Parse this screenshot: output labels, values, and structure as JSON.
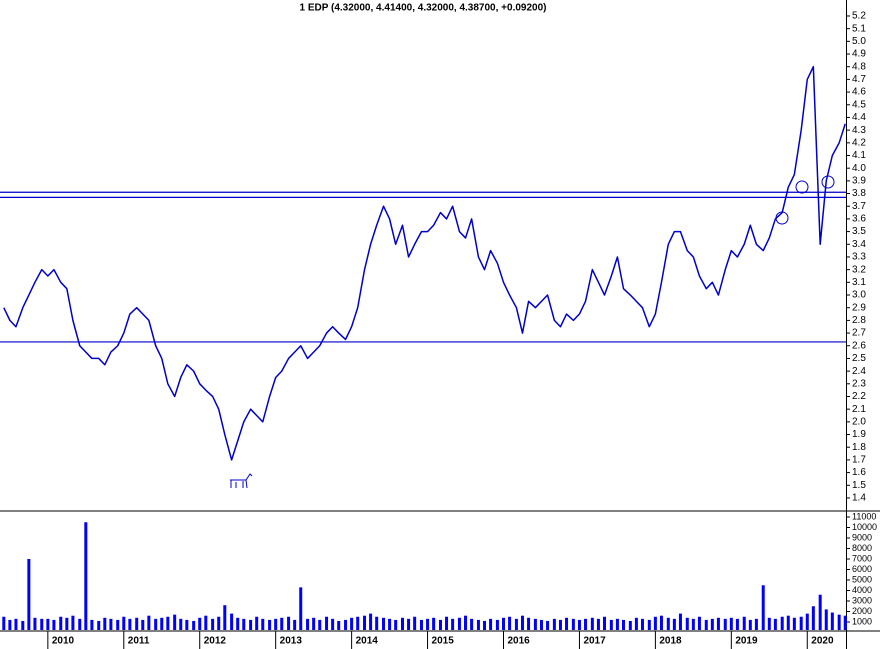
{
  "chart_data": [
    {
      "type": "line",
      "title": "1 EDP (4.32000, 4.41400, 4.32000, 4.38700, +0.09200)",
      "xlim": [
        2009.37,
        2020.51
      ],
      "ylim": [
        1.305,
        5.326
      ],
      "yticks": [
        1.4,
        1.5,
        1.6,
        1.7,
        1.8,
        1.9,
        {
          "value": 2,
          "label": "2.0"
        },
        2.1,
        2.2,
        2.3,
        2.4,
        2.5,
        2.6,
        2.7,
        2.8,
        2.9,
        {
          "value": 3,
          "label": "3.0"
        },
        3.1,
        3.2,
        3.3,
        3.4,
        3.5,
        3.6,
        3.7,
        3.8,
        3.9,
        {
          "value": 4,
          "label": "4.0"
        },
        4.1,
        4.2,
        4.3,
        4.4,
        4.5,
        4.6,
        4.7,
        4.8,
        4.9,
        {
          "value": 5,
          "label": "5.0"
        },
        5.1,
        5.2
      ],
      "hlines": [
        3.81,
        3.77,
        2.63
      ],
      "x": [
        2009.42,
        2009.5,
        2009.58,
        2009.67,
        2009.75,
        2009.83,
        2009.92,
        2010.0,
        2010.08,
        2010.17,
        2010.25,
        2010.33,
        2010.42,
        2010.5,
        2010.58,
        2010.67,
        2010.75,
        2010.83,
        2010.92,
        2011.0,
        2011.08,
        2011.17,
        2011.25,
        2011.33,
        2011.42,
        2011.5,
        2011.58,
        2011.67,
        2011.75,
        2011.83,
        2011.92,
        2012.0,
        2012.08,
        2012.17,
        2012.25,
        2012.33,
        2012.42,
        2012.5,
        2012.58,
        2012.67,
        2012.75,
        2012.83,
        2012.92,
        2013.0,
        2013.08,
        2013.17,
        2013.25,
        2013.33,
        2013.42,
        2013.5,
        2013.58,
        2013.67,
        2013.75,
        2013.83,
        2013.92,
        2014.0,
        2014.08,
        2014.17,
        2014.25,
        2014.33,
        2014.42,
        2014.5,
        2014.58,
        2014.67,
        2014.75,
        2014.83,
        2014.92,
        2015.0,
        2015.08,
        2015.17,
        2015.25,
        2015.33,
        2015.42,
        2015.5,
        2015.58,
        2015.67,
        2015.75,
        2015.83,
        2015.92,
        2016.0,
        2016.08,
        2016.17,
        2016.25,
        2016.33,
        2016.42,
        2016.5,
        2016.58,
        2016.67,
        2016.75,
        2016.83,
        2016.92,
        2017.0,
        2017.08,
        2017.17,
        2017.25,
        2017.33,
        2017.42,
        2017.5,
        2017.58,
        2017.67,
        2017.75,
        2017.83,
        2017.92,
        2018.0,
        2018.08,
        2018.17,
        2018.25,
        2018.33,
        2018.42,
        2018.5,
        2018.58,
        2018.67,
        2018.75,
        2018.83,
        2018.92,
        2019.0,
        2019.08,
        2019.17,
        2019.25,
        2019.33,
        2019.42,
        2019.5,
        2019.58,
        2019.67,
        2019.75,
        2019.83,
        2019.92,
        2020.0,
        2020.08,
        2020.17,
        2020.25,
        2020.33,
        2020.42,
        2020.5
      ],
      "series": [
        {
          "color": "#0000cc",
          "values": [
            2.9,
            2.8,
            2.75,
            2.9,
            3.0,
            3.1,
            3.2,
            3.15,
            3.2,
            3.1,
            3.05,
            2.8,
            2.6,
            2.55,
            2.5,
            2.5,
            2.45,
            2.55,
            2.6,
            2.7,
            2.85,
            2.9,
            2.85,
            2.8,
            2.6,
            2.5,
            2.3,
            2.2,
            2.35,
            2.45,
            2.4,
            2.3,
            2.25,
            2.2,
            2.1,
            1.9,
            1.7,
            1.85,
            2.0,
            2.1,
            2.05,
            2.0,
            2.2,
            2.35,
            2.4,
            2.5,
            2.55,
            2.6,
            2.5,
            2.55,
            2.6,
            2.7,
            2.75,
            2.7,
            2.65,
            2.75,
            2.9,
            3.2,
            3.4,
            3.55,
            3.7,
            3.6,
            3.4,
            3.55,
            3.3,
            3.4,
            3.5,
            3.5,
            3.55,
            3.65,
            3.6,
            3.7,
            3.5,
            3.45,
            3.6,
            3.3,
            3.2,
            3.35,
            3.25,
            3.1,
            3.0,
            2.9,
            2.7,
            2.95,
            2.9,
            2.95,
            3.0,
            2.8,
            2.75,
            2.85,
            2.8,
            2.85,
            2.95,
            3.2,
            3.1,
            3.0,
            3.15,
            3.3,
            3.05,
            3.0,
            2.95,
            2.9,
            2.75,
            2.85,
            3.1,
            3.4,
            3.5,
            3.5,
            3.35,
            3.3,
            3.15,
            3.05,
            3.1,
            3.0,
            3.2,
            3.35,
            3.3,
            3.4,
            3.55,
            3.4,
            3.35,
            3.45,
            3.6,
            3.65,
            3.85,
            3.95,
            4.3,
            4.7,
            4.8,
            3.4,
            3.9,
            4.1,
            4.2,
            4.35
          ]
        }
      ]
    },
    {
      "type": "bar",
      "xlim": [
        2009.37,
        2020.51
      ],
      "xticks": [
        2010,
        2011,
        2012,
        2013,
        2014,
        2015,
        2016,
        2017,
        2018,
        2019,
        2020
      ],
      "ylim": [
        238,
        11476
      ],
      "yticks": [
        1000,
        2000,
        3000,
        4000,
        5000,
        6000,
        7000,
        8000,
        9000,
        10000,
        11000
      ],
      "color": "#0000ff",
      "x": [
        2009.42,
        2009.5,
        2009.58,
        2009.67,
        2009.75,
        2009.83,
        2009.92,
        2010.0,
        2010.08,
        2010.17,
        2010.25,
        2010.33,
        2010.42,
        2010.5,
        2010.58,
        2010.67,
        2010.75,
        2010.83,
        2010.92,
        2011.0,
        2011.08,
        2011.17,
        2011.25,
        2011.33,
        2011.42,
        2011.5,
        2011.58,
        2011.67,
        2011.75,
        2011.83,
        2011.92,
        2012.0,
        2012.08,
        2012.17,
        2012.25,
        2012.33,
        2012.42,
        2012.5,
        2012.58,
        2012.67,
        2012.75,
        2012.83,
        2012.92,
        2013.0,
        2013.08,
        2013.17,
        2013.25,
        2013.33,
        2013.42,
        2013.5,
        2013.58,
        2013.67,
        2013.75,
        2013.83,
        2013.92,
        2014.0,
        2014.08,
        2014.17,
        2014.25,
        2014.33,
        2014.42,
        2014.5,
        2014.58,
        2014.67,
        2014.75,
        2014.83,
        2014.92,
        2015.0,
        2015.08,
        2015.17,
        2015.25,
        2015.33,
        2015.42,
        2015.5,
        2015.58,
        2015.67,
        2015.75,
        2015.83,
        2015.92,
        2016.0,
        2016.08,
        2016.17,
        2016.25,
        2016.33,
        2016.42,
        2016.5,
        2016.58,
        2016.67,
        2016.75,
        2016.83,
        2016.92,
        2017.0,
        2017.08,
        2017.17,
        2017.25,
        2017.33,
        2017.42,
        2017.5,
        2017.58,
        2017.67,
        2017.75,
        2017.83,
        2017.92,
        2018.0,
        2018.08,
        2018.17,
        2018.25,
        2018.33,
        2018.42,
        2018.5,
        2018.58,
        2018.67,
        2018.75,
        2018.83,
        2018.92,
        2019.0,
        2019.08,
        2019.17,
        2019.25,
        2019.33,
        2019.42,
        2019.5,
        2019.58,
        2019.67,
        2019.75,
        2019.83,
        2019.92,
        2020.0,
        2020.08,
        2020.17,
        2020.25,
        2020.33,
        2020.42,
        2020.5
      ],
      "values": [
        1500,
        1200,
        1300,
        1100,
        7000,
        1400,
        1300,
        1300,
        1200,
        1500,
        1400,
        1600,
        1300,
        10500,
        1200,
        1100,
        1400,
        1300,
        1200,
        1500,
        1300,
        1400,
        1200,
        1600,
        1300,
        1400,
        1500,
        1700,
        1300,
        1200,
        1100,
        1400,
        1600,
        1300,
        1500,
        2600,
        1800,
        1400,
        1300,
        1200,
        1500,
        1300,
        1200,
        1300,
        1400,
        1500,
        1200,
        4300,
        1300,
        1400,
        1200,
        1500,
        1300,
        1100,
        1200,
        1400,
        1500,
        1600,
        1800,
        1500,
        1400,
        1300,
        1200,
        1400,
        1300,
        1500,
        1200,
        1300,
        1400,
        1200,
        1500,
        1300,
        1400,
        1600,
        1300,
        1200,
        1100,
        1300,
        1200,
        1400,
        1500,
        1300,
        1600,
        1400,
        1300,
        1200,
        1100,
        1300,
        1200,
        1400,
        1300,
        1200,
        1300,
        1400,
        1300,
        1500,
        1200,
        1300,
        1200,
        1100,
        1400,
        1300,
        1200,
        1500,
        1600,
        1400,
        1300,
        1800,
        1400,
        1300,
        1500,
        1200,
        1300,
        1400,
        1300,
        1400,
        1300,
        1500,
        1200,
        1300,
        4500,
        1400,
        1300,
        1500,
        1600,
        1400,
        1500,
        1800,
        2500,
        3600,
        2200,
        1900,
        1700,
        1600
      ]
    }
  ]
}
